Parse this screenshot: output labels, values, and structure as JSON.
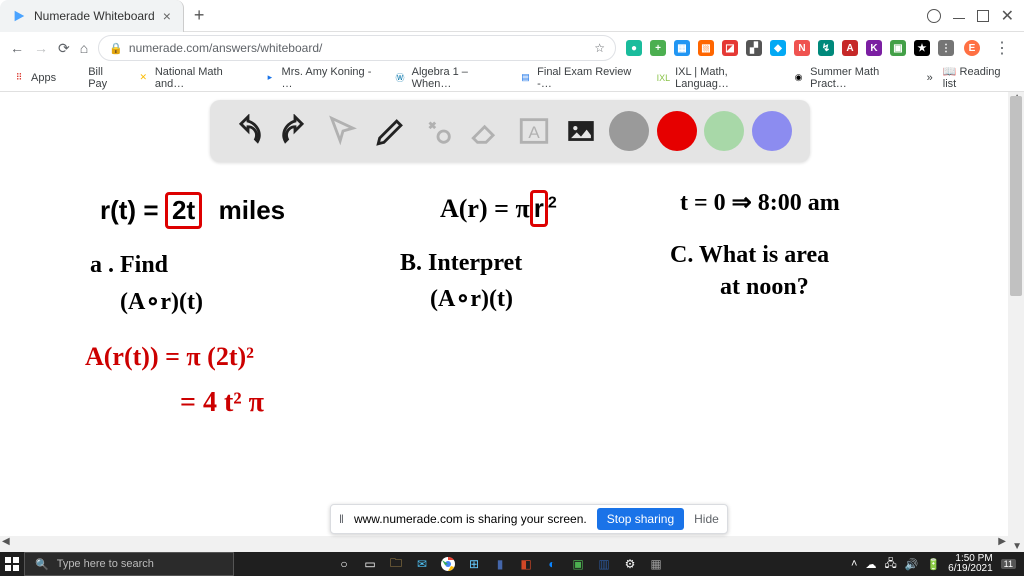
{
  "window": {
    "tab_title": "Numerade Whiteboard",
    "url_display": "numerade.com/answers/whiteboard/"
  },
  "ext_icons": [
    {
      "bg": "#1abc9c",
      "txt": "●"
    },
    {
      "bg": "#4caf50",
      "txt": "+"
    },
    {
      "bg": "#2196f3",
      "txt": "▦"
    },
    {
      "bg": "#ff6600",
      "txt": "▧"
    },
    {
      "bg": "#e53935",
      "txt": "◪"
    },
    {
      "bg": "#555",
      "txt": "▞"
    },
    {
      "bg": "#03a9f4",
      "txt": "◆"
    },
    {
      "bg": "#ef5350",
      "txt": "N"
    },
    {
      "bg": "#00897b",
      "txt": "↯"
    },
    {
      "bg": "#c62828",
      "txt": "A"
    },
    {
      "bg": "#7b1fa2",
      "txt": "K"
    },
    {
      "bg": "#43a047",
      "txt": "▣"
    },
    {
      "bg": "#000",
      "txt": "★"
    },
    {
      "bg": "#757575",
      "txt": "⋮"
    }
  ],
  "avatar": {
    "bg": "#ff7043",
    "txt": "E"
  },
  "bookmarks": [
    {
      "icon": "⠿",
      "color": "#d93025",
      "label": "Apps"
    },
    {
      "icon": "",
      "color": "",
      "label": "Bill Pay"
    },
    {
      "icon": "✕",
      "color": "#fbbc04",
      "label": "National Math and…"
    },
    {
      "icon": "▸",
      "color": "#1a73e8",
      "label": "Mrs. Amy Koning - …"
    },
    {
      "icon": "Ⓦ",
      "color": "#0073aa",
      "label": "Algebra 1 – When…"
    },
    {
      "icon": "▤",
      "color": "#1a73e8",
      "label": "Final Exam Review -…"
    },
    {
      "icon": "IXL",
      "color": "#8bc34a",
      "label": "IXL | Math, Languag…"
    },
    {
      "icon": "◉",
      "color": "#000",
      "label": "Summer Math Pract…"
    }
  ],
  "bookmarks_more": "»",
  "reading_list": "Reading list",
  "toolbar_colors": {
    "gray": "#9a9a9a",
    "red": "#e60000",
    "green": "#a8d8a8",
    "blue": "#8c8cf0"
  },
  "handwriting": {
    "eq1_a": "r(t) =",
    "eq1_b": "2t",
    "eq1_c": "miles",
    "eq2": "A(r) = π r²",
    "eq2_boxed": "r",
    "eq3": "t = 0  ⇒  8:00 am",
    "qa_a": "a .  Find",
    "qa_b": "(A∘r)(t)",
    "qb_a": "B.  Interpret",
    "qb_b": "(A∘r)(t)",
    "qc_a": "C.  What is area",
    "qc_b": "at  noon?",
    "sol1": "A(r(t)) = π (2t)²",
    "sol2": "= 4 t² π"
  },
  "share": {
    "msg": "www.numerade.com is sharing your screen.",
    "stop": "Stop sharing",
    "hide": "Hide"
  },
  "taskbar": {
    "search_placeholder": "Type here to search",
    "time": "1:50 PM",
    "date": "6/19/2021",
    "badge": "11"
  }
}
